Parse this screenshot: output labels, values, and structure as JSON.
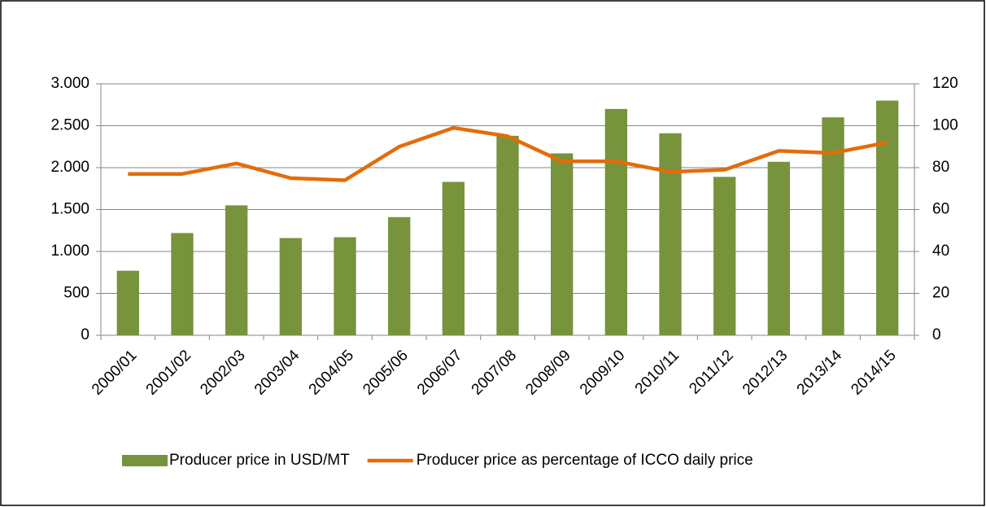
{
  "chart_data": {
    "type": "bar_line",
    "categories": [
      "2000/01",
      "2001/02",
      "2002/03",
      "2003/04",
      "2004/05",
      "2005/06",
      "2006/07",
      "2007/08",
      "2008/09",
      "2009/10",
      "2010/11",
      "2011/12",
      "2012/13",
      "2013/14",
      "2014/15"
    ],
    "series": [
      {
        "name": "Producer price in USD/MT",
        "type": "bar",
        "color": "#77933c",
        "axis": "y",
        "values": [
          770,
          1220,
          1550,
          1160,
          1170,
          1410,
          1830,
          2380,
          2170,
          2700,
          2410,
          1890,
          2070,
          2600,
          2800
        ]
      },
      {
        "name": "Producer price as percentage of ICCO daily price",
        "type": "line",
        "color": "#e36c0a",
        "axis": "y2",
        "values": [
          77,
          77,
          82,
          75,
          74,
          90,
          99,
          95,
          83,
          83,
          78,
          79,
          88,
          87,
          92
        ]
      }
    ],
    "ylim": [
      0,
      3000
    ],
    "yticks": [
      0,
      500,
      {
        "value": 1000,
        "label": "1.000"
      },
      {
        "value": 1500,
        "label": "1.500"
      },
      {
        "value": 2000,
        "label": "2.000"
      },
      {
        "value": 2500,
        "label": "2.500"
      },
      {
        "value": 3000,
        "label": "3.000"
      }
    ],
    "y2lim": [
      0,
      120
    ],
    "y2ticks": [
      0,
      20,
      40,
      60,
      80,
      100,
      120
    ],
    "grid": true,
    "legend": "bottom"
  }
}
